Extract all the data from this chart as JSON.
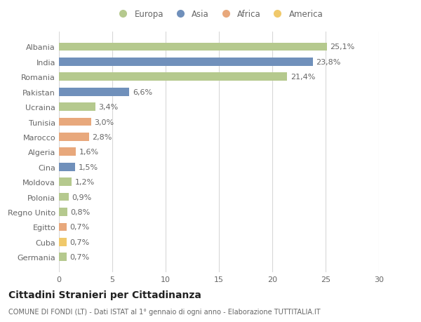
{
  "countries": [
    "Albania",
    "India",
    "Romania",
    "Pakistan",
    "Ucraina",
    "Tunisia",
    "Marocco",
    "Algeria",
    "Cina",
    "Moldova",
    "Polonia",
    "Regno Unito",
    "Egitto",
    "Cuba",
    "Germania"
  ],
  "values": [
    25.1,
    23.8,
    21.4,
    6.6,
    3.4,
    3.0,
    2.8,
    1.6,
    1.5,
    1.2,
    0.9,
    0.8,
    0.7,
    0.7,
    0.7
  ],
  "labels": [
    "25,1%",
    "23,8%",
    "21,4%",
    "6,6%",
    "3,4%",
    "3,0%",
    "2,8%",
    "1,6%",
    "1,5%",
    "1,2%",
    "0,9%",
    "0,8%",
    "0,7%",
    "0,7%",
    "0,7%"
  ],
  "continents": [
    "Europa",
    "Asia",
    "Europa",
    "Asia",
    "Europa",
    "Africa",
    "Africa",
    "Africa",
    "Asia",
    "Europa",
    "Europa",
    "Europa",
    "Africa",
    "America",
    "Europa"
  ],
  "colors": {
    "Europa": "#b5c98e",
    "Asia": "#7090bb",
    "Africa": "#e8a87c",
    "America": "#f0c96b"
  },
  "legend_order": [
    "Europa",
    "Asia",
    "Africa",
    "America"
  ],
  "xlim": [
    0,
    30
  ],
  "xticks": [
    0,
    5,
    10,
    15,
    20,
    25,
    30
  ],
  "title": "Cittadini Stranieri per Cittadinanza",
  "subtitle": "COMUNE DI FONDI (LT) - Dati ISTAT al 1° gennaio di ogni anno - Elaborazione TUTTITALIA.IT",
  "background_color": "#ffffff",
  "grid_color": "#d8d8d8",
  "bar_height": 0.55,
  "label_fontsize": 8,
  "ytick_fontsize": 8,
  "xtick_fontsize": 8,
  "title_fontsize": 10,
  "subtitle_fontsize": 7
}
